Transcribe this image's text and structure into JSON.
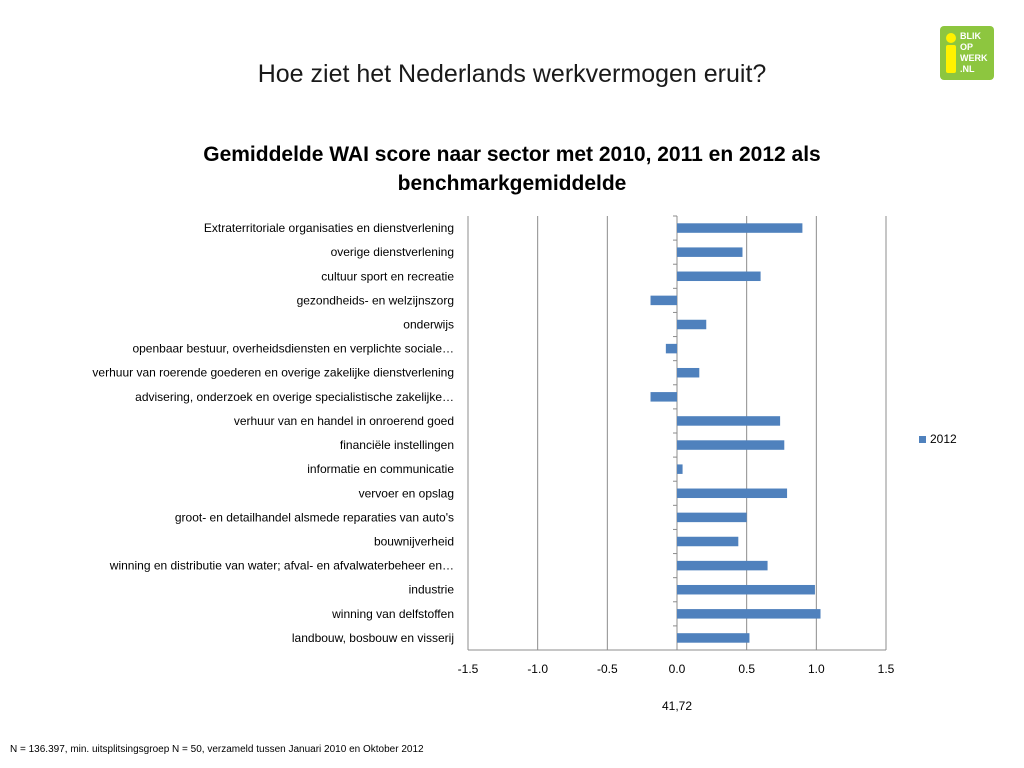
{
  "slide": {
    "title": "Hoe ziet het Nederlands werkvermogen eruit?",
    "footnote": "N = 136.397, min. uitsplitsingsgroep N = 50, verzameld tussen Januari 2010 en Oktober 2012"
  },
  "logo": {
    "lines": [
      "BLIK",
      "OP",
      "WERK",
      ".NL"
    ],
    "color": "#8dc63f",
    "accent": "#fff200"
  },
  "chart_data": {
    "type": "bar",
    "orientation": "horizontal",
    "title": "Gemiddelde WAI score naar sector met 2010, 2011 en 2012 als benchmarkgemiddelde",
    "title_lines": [
      "Gemiddelde WAI score naar sector met 2010, 2011 en 2012 als",
      "benchmarkgemiddelde"
    ],
    "xlabel": "41,72",
    "ylabel": "",
    "xlim": [
      -1.5,
      1.5
    ],
    "x_ticks": [
      "-1.5",
      "-1.0",
      "-0.5",
      "0.0",
      "0.5",
      "1.0",
      "1.5"
    ],
    "x_tick_values": [
      -1.5,
      -1.0,
      -0.5,
      0.0,
      0.5,
      1.0,
      1.5
    ],
    "grid": "vertical",
    "legend_position": "right",
    "categories": [
      "Extraterritoriale organisaties en dienstverlening",
      "overige dienstverlening",
      "cultuur sport en recreatie",
      "gezondheids- en welzijnszorg",
      "onderwijs",
      "openbaar bestuur, overheidsdiensten en verplichte sociale…",
      "verhuur van roerende goederen en overige zakelijke dienstverlening",
      "advisering, onderzoek en overige specialistische zakelijke…",
      "verhuur van en handel in onroerend goed",
      "financiële instellingen",
      "informatie en communicatie",
      "vervoer en opslag",
      "groot- en detailhandel alsmede reparaties van auto's",
      "bouwnijverheid",
      "winning en distributie van water; afval- en afvalwaterbeheer en…",
      "industrie",
      "winning van delfstoffen",
      "landbouw, bosbouw en visserij"
    ],
    "series": [
      {
        "name": "2012",
        "color": "#4f81bd",
        "values": [
          0.9,
          0.47,
          0.6,
          -0.19,
          0.21,
          -0.08,
          0.16,
          -0.19,
          0.74,
          0.77,
          0.04,
          0.79,
          0.5,
          0.44,
          0.65,
          0.99,
          1.03,
          0.52
        ]
      }
    ]
  }
}
